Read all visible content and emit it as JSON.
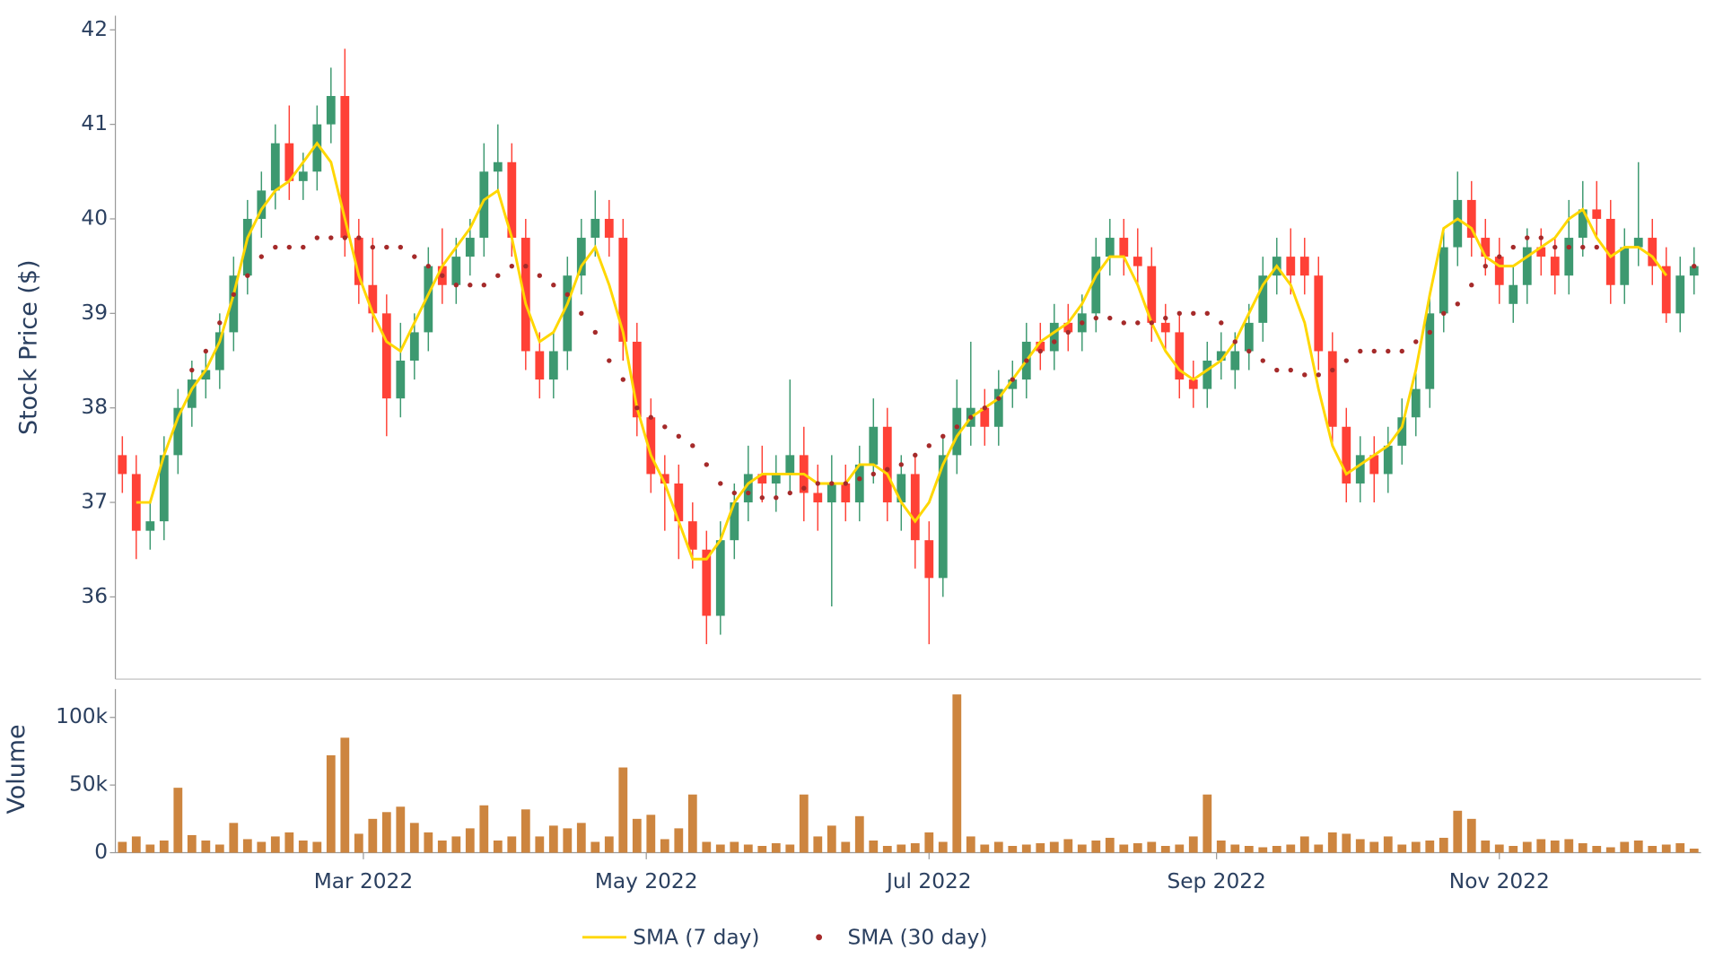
{
  "chart_data": [
    {
      "type": "candlestick",
      "y_label": "Stock Price ($)",
      "up_color": "#3d9970",
      "down_color": "#ff4136",
      "ylim": [
        35.13,
        42.15
      ],
      "yticks": [
        36,
        37,
        38,
        39,
        40,
        41,
        42
      ],
      "open": [
        37.5,
        37.3,
        36.7,
        36.8,
        37.5,
        38.0,
        38.3,
        38.4,
        38.8,
        39.4,
        40.0,
        40.3,
        40.8,
        40.4,
        40.5,
        41.0,
        41.3,
        39.8,
        39.3,
        39.0,
        38.1,
        38.5,
        38.8,
        39.5,
        39.3,
        39.6,
        39.8,
        40.5,
        40.6,
        39.8,
        38.6,
        38.3,
        38.6,
        39.4,
        39.8,
        40.0,
        39.8,
        38.7,
        37.9,
        37.3,
        37.2,
        36.8,
        36.5,
        35.8,
        36.6,
        37.0,
        37.3,
        37.2,
        37.3,
        37.5,
        37.1,
        37.0,
        37.2,
        37.0,
        37.4,
        37.8,
        37.0,
        37.3,
        36.6,
        36.2,
        37.5,
        37.8,
        38.0,
        37.8,
        38.2,
        38.3,
        38.7,
        38.6,
        38.9,
        38.8,
        39.0,
        39.6,
        39.8,
        39.6,
        39.5,
        38.9,
        38.8,
        38.3,
        38.2,
        38.5,
        38.4,
        38.6,
        38.9,
        39.4,
        39.6,
        39.6,
        39.4,
        38.6,
        37.8,
        37.2,
        37.5,
        37.3,
        37.6,
        37.9,
        38.2,
        39.0,
        39.7,
        40.2,
        39.8,
        39.6,
        39.1,
        39.3,
        39.7,
        39.6,
        39.4,
        39.8,
        40.1,
        40.0,
        39.3,
        39.7,
        39.8,
        39.5,
        39.0,
        39.4
      ],
      "high": [
        37.7,
        37.5,
        37.0,
        37.7,
        38.2,
        38.5,
        38.6,
        39.0,
        39.6,
        40.2,
        40.5,
        41.0,
        41.2,
        40.7,
        41.2,
        41.6,
        41.8,
        40.0,
        39.8,
        39.2,
        38.9,
        39.0,
        39.7,
        39.9,
        39.8,
        40.0,
        40.8,
        41.0,
        40.8,
        40.0,
        38.8,
        38.8,
        39.6,
        40.0,
        40.3,
        40.2,
        40.0,
        38.9,
        38.1,
        37.5,
        37.4,
        37.0,
        36.7,
        36.8,
        37.2,
        37.6,
        37.6,
        37.5,
        38.3,
        37.8,
        37.4,
        37.5,
        37.4,
        37.6,
        38.1,
        38.0,
        37.5,
        37.5,
        36.8,
        37.7,
        38.3,
        38.7,
        38.2,
        38.4,
        38.5,
        38.9,
        38.9,
        39.1,
        39.1,
        39.2,
        39.8,
        40.0,
        40.0,
        39.9,
        39.7,
        39.1,
        39.0,
        38.5,
        38.7,
        38.8,
        38.8,
        39.1,
        39.6,
        39.8,
        39.9,
        39.8,
        39.6,
        38.8,
        38.0,
        37.7,
        37.7,
        37.8,
        38.1,
        38.4,
        39.2,
        39.9,
        40.5,
        40.4,
        40.0,
        39.8,
        39.5,
        39.9,
        39.9,
        39.8,
        40.2,
        40.4,
        40.4,
        40.2,
        39.9,
        40.6,
        40.0,
        39.7,
        39.6,
        39.7
      ],
      "low": [
        37.1,
        36.4,
        36.5,
        36.6,
        37.3,
        37.8,
        38.1,
        38.2,
        38.6,
        39.2,
        39.8,
        40.1,
        40.2,
        40.2,
        40.3,
        40.8,
        39.6,
        39.1,
        38.8,
        37.7,
        37.9,
        38.3,
        38.6,
        39.1,
        39.1,
        39.4,
        39.6,
        40.3,
        39.6,
        38.4,
        38.1,
        38.1,
        38.4,
        39.2,
        39.6,
        39.6,
        38.5,
        37.7,
        37.1,
        36.7,
        36.4,
        36.3,
        35.5,
        35.6,
        36.4,
        36.8,
        37.0,
        36.9,
        37.1,
        36.8,
        36.7,
        35.9,
        36.8,
        36.8,
        37.2,
        36.8,
        36.7,
        36.3,
        35.5,
        36.0,
        37.3,
        37.6,
        37.6,
        37.6,
        38.0,
        38.1,
        38.4,
        38.4,
        38.6,
        38.6,
        38.8,
        39.4,
        39.4,
        39.3,
        38.7,
        38.6,
        38.1,
        38.0,
        38.0,
        38.3,
        38.2,
        38.4,
        38.7,
        39.2,
        39.2,
        39.2,
        38.4,
        37.6,
        37.0,
        37.0,
        37.0,
        37.1,
        37.4,
        37.7,
        38.0,
        38.8,
        39.5,
        39.6,
        39.4,
        39.1,
        38.9,
        39.1,
        39.4,
        39.2,
        39.2,
        39.6,
        39.8,
        39.1,
        39.1,
        39.5,
        39.3,
        38.9,
        38.8,
        39.2
      ],
      "close": [
        37.3,
        36.7,
        36.8,
        37.5,
        38.0,
        38.3,
        38.4,
        38.8,
        39.4,
        40.0,
        40.3,
        40.8,
        40.4,
        40.5,
        41.0,
        41.3,
        39.8,
        39.3,
        39.0,
        38.1,
        38.5,
        38.8,
        39.5,
        39.3,
        39.6,
        39.8,
        40.5,
        40.6,
        39.8,
        38.6,
        38.3,
        38.6,
        39.4,
        39.8,
        40.0,
        39.8,
        38.7,
        37.9,
        37.3,
        37.2,
        36.8,
        36.5,
        35.8,
        36.6,
        37.0,
        37.3,
        37.2,
        37.3,
        37.5,
        37.1,
        37.0,
        37.2,
        37.0,
        37.4,
        37.8,
        37.0,
        37.3,
        36.6,
        36.2,
        37.5,
        38.0,
        38.0,
        37.8,
        38.2,
        38.3,
        38.7,
        38.6,
        38.9,
        38.8,
        39.0,
        39.6,
        39.8,
        39.6,
        39.5,
        38.9,
        38.8,
        38.3,
        38.2,
        38.5,
        38.6,
        38.6,
        38.9,
        39.4,
        39.6,
        39.4,
        39.4,
        38.6,
        37.8,
        37.2,
        37.5,
        37.3,
        37.6,
        37.9,
        38.2,
        39.0,
        39.7,
        40.2,
        39.8,
        39.6,
        39.3,
        39.3,
        39.7,
        39.6,
        39.4,
        39.8,
        40.1,
        40.0,
        39.3,
        39.7,
        39.8,
        39.5,
        39.0,
        39.4,
        39.5
      ],
      "series": [
        {
          "name": "SMA (7 day)",
          "color": "#ffd700",
          "style": "line",
          "values": [
            null,
            37.0,
            37.0,
            37.5,
            37.9,
            38.2,
            38.4,
            38.7,
            39.2,
            39.8,
            40.1,
            40.3,
            40.4,
            40.6,
            40.8,
            40.6,
            40.0,
            39.4,
            39.0,
            38.7,
            38.6,
            38.9,
            39.2,
            39.5,
            39.7,
            39.9,
            40.2,
            40.3,
            39.8,
            39.1,
            38.7,
            38.8,
            39.1,
            39.5,
            39.7,
            39.3,
            38.8,
            38.0,
            37.5,
            37.2,
            36.8,
            36.4,
            36.4,
            36.6,
            37.0,
            37.2,
            37.3,
            37.3,
            37.3,
            37.3,
            37.2,
            37.2,
            37.2,
            37.4,
            37.4,
            37.3,
            37.0,
            36.8,
            37.0,
            37.4,
            37.7,
            37.9,
            38.0,
            38.1,
            38.3,
            38.5,
            38.7,
            38.8,
            38.9,
            39.1,
            39.4,
            39.6,
            39.6,
            39.3,
            38.9,
            38.6,
            38.4,
            38.3,
            38.4,
            38.5,
            38.7,
            39.0,
            39.3,
            39.5,
            39.3,
            38.9,
            38.2,
            37.6,
            37.3,
            37.4,
            37.5,
            37.6,
            37.8,
            38.4,
            39.2,
            39.9,
            40.0,
            39.9,
            39.6,
            39.5,
            39.5,
            39.6,
            39.7,
            39.8,
            40.0,
            40.1,
            39.8,
            39.6,
            39.7,
            39.7,
            39.6,
            39.4,
            null,
            null
          ]
        },
        {
          "name": "SMA (30 day)",
          "color": "#a52a2a",
          "style": "dots",
          "values": [
            null,
            null,
            null,
            null,
            null,
            38.4,
            38.6,
            38.9,
            39.2,
            39.4,
            39.6,
            39.7,
            39.7,
            39.7,
            39.8,
            39.8,
            39.8,
            39.8,
            39.7,
            39.7,
            39.7,
            39.6,
            39.5,
            39.4,
            39.3,
            39.3,
            39.3,
            39.4,
            39.5,
            39.5,
            39.4,
            39.3,
            39.2,
            39.0,
            38.8,
            38.5,
            38.3,
            38.0,
            37.9,
            37.8,
            37.7,
            37.6,
            37.4,
            37.2,
            37.1,
            37.1,
            37.05,
            37.05,
            37.1,
            37.15,
            37.2,
            37.2,
            37.2,
            37.25,
            37.3,
            37.35,
            37.4,
            37.5,
            37.6,
            37.7,
            37.8,
            37.9,
            38.0,
            38.1,
            38.3,
            38.5,
            38.6,
            38.7,
            38.8,
            38.9,
            38.95,
            38.95,
            38.9,
            38.9,
            38.9,
            38.95,
            39.0,
            39.0,
            39.0,
            38.9,
            38.7,
            38.6,
            38.5,
            38.4,
            38.4,
            38.35,
            38.35,
            38.4,
            38.5,
            38.6,
            38.6,
            38.6,
            38.6,
            38.7,
            38.8,
            39.0,
            39.1,
            39.3,
            39.5,
            39.6,
            39.7,
            39.8,
            39.8,
            39.7,
            39.7,
            39.7,
            39.7,
            null,
            null,
            null,
            null,
            null,
            null,
            39.5
          ]
        }
      ]
    },
    {
      "type": "bar",
      "y_label": "Volume",
      "color": "#cd853f",
      "ylim": [
        0,
        121000
      ],
      "yticks": [
        0,
        {
          "value": 50000,
          "label": "50k"
        },
        {
          "value": 100000,
          "label": "100k"
        }
      ],
      "xlim": [
        -0.5,
        113.5
      ],
      "xticks": [
        {
          "value": 17.33,
          "label": "Mar 2022"
        },
        {
          "value": 37.67,
          "label": "May 2022"
        },
        {
          "value": 58,
          "label": "Jul 2022"
        },
        {
          "value": 78.67,
          "label": "Sep 2022"
        },
        {
          "value": 99,
          "label": "Nov 2022"
        }
      ],
      "categories": [
        null,
        null,
        null,
        null,
        null,
        null,
        null,
        null,
        null,
        null,
        null,
        null,
        null,
        null,
        null,
        null,
        null,
        null,
        null,
        null,
        null,
        null,
        null,
        null,
        null,
        null,
        null,
        null,
        null,
        null,
        null,
        null,
        null,
        null,
        null,
        null,
        null,
        null,
        null,
        null,
        null,
        null,
        null,
        null,
        null,
        null,
        null,
        null,
        null,
        null,
        null,
        null,
        null,
        null,
        null,
        null,
        null,
        null,
        null,
        null,
        null,
        null,
        null,
        null,
        null,
        null,
        null,
        null,
        null,
        null,
        null,
        null,
        null,
        null,
        null,
        null,
        null,
        null,
        null,
        null,
        null,
        null,
        null,
        null,
        null,
        null,
        null,
        null,
        null,
        null,
        null,
        null,
        null,
        null,
        null,
        null,
        null,
        null,
        null,
        null,
        null,
        null,
        null,
        null,
        null,
        null,
        null,
        null,
        null,
        null,
        null,
        null,
        null,
        null
      ],
      "values": [
        8000,
        12000,
        6000,
        9000,
        48000,
        13000,
        9000,
        6000,
        22000,
        10000,
        8000,
        12000,
        15000,
        9000,
        8000,
        72000,
        85000,
        14000,
        25000,
        30000,
        34000,
        22000,
        15000,
        9000,
        12000,
        18000,
        35000,
        9000,
        12000,
        32000,
        12000,
        20000,
        18000,
        22000,
        8000,
        12000,
        63000,
        25000,
        28000,
        10000,
        18000,
        43000,
        8000,
        6000,
        8000,
        6000,
        5000,
        7000,
        6000,
        43000,
        12000,
        20000,
        8000,
        27000,
        9000,
        5000,
        6000,
        7000,
        15000,
        8000,
        117000,
        12000,
        6000,
        8000,
        5000,
        6000,
        7000,
        8000,
        10000,
        6000,
        9000,
        11000,
        6000,
        7000,
        8000,
        5000,
        6000,
        12000,
        43000,
        9000,
        6000,
        5000,
        4000,
        5000,
        6000,
        12000,
        6000,
        15000,
        14000,
        10000,
        8000,
        12000,
        6000,
        8000,
        9000,
        11000,
        31000,
        25000,
        9000,
        6000,
        5000,
        8000,
        10000,
        9000,
        10000,
        7000,
        5000,
        4000,
        8000,
        9000,
        5000,
        6000,
        7000,
        3000
      ]
    }
  ]
}
